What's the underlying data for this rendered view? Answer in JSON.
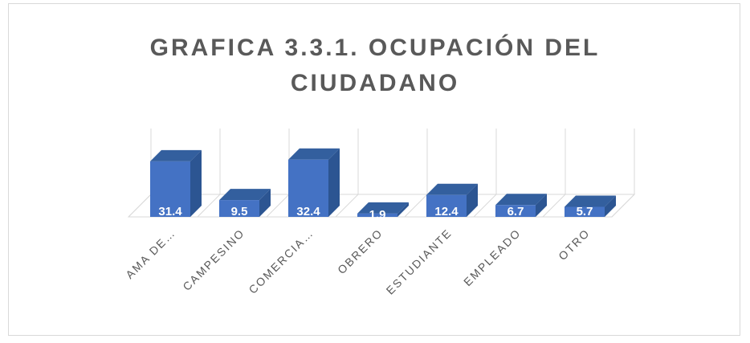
{
  "chart_data": {
    "type": "bar3d",
    "title": "GRAFICA 3.3.1. OCUPACIÓN DEL CIUDADANO",
    "categories": [
      "AMA DE…",
      "CAMPESINO",
      "COMERCIA…",
      "OBRERO",
      "ESTUDIANTE",
      "EMPLEADO",
      "OTRO"
    ],
    "values": [
      31.4,
      9.5,
      32.4,
      1.9,
      12.4,
      6.7,
      5.7
    ],
    "color": "#4472c4",
    "ylim": [
      0,
      50
    ],
    "grid": true
  }
}
